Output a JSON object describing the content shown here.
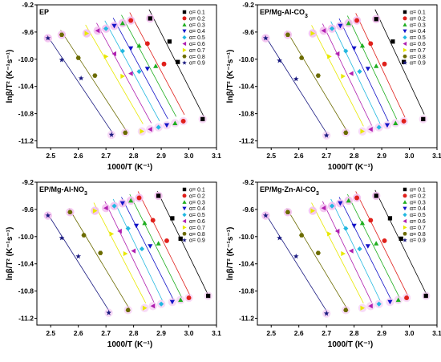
{
  "chart_data": [
    {
      "type": "scatter",
      "title": "EP",
      "title_parts": [
        "EP"
      ],
      "xlabel": "1000/T (K⁻¹)",
      "ylabel": "lnβ/T² (K⁻¹s⁻¹)",
      "xlim": [
        2.45,
        3.1
      ],
      "ylim": [
        -11.3,
        -9.2
      ],
      "xticks": [
        "2.5",
        "2.6",
        "2.7",
        "2.8",
        "2.9",
        "3.0",
        "3.1"
      ],
      "yticks": [
        "-9.2",
        "-9.6",
        "-10.0",
        "-10.4",
        "-10.8",
        "-11.2"
      ],
      "legend_position": "top-right",
      "series": [
        {
          "name": "α= 0.1",
          "x": [
            2.86,
            2.93,
            2.96,
            3.05
          ],
          "y": [
            -9.4,
            -9.74,
            -10.04,
            -10.88
          ]
        },
        {
          "name": "α= 0.2",
          "x": [
            2.79,
            2.85,
            2.91,
            2.98
          ],
          "y": [
            -9.43,
            -9.77,
            -10.07,
            -10.91
          ]
        },
        {
          "name": "α= 0.3",
          "x": [
            2.76,
            2.82,
            2.88,
            2.95
          ],
          "y": [
            -9.47,
            -9.8,
            -10.1,
            -10.94
          ]
        },
        {
          "name": "α= 0.4",
          "x": [
            2.73,
            2.79,
            2.85,
            2.92
          ],
          "y": [
            -9.51,
            -9.84,
            -10.14,
            -10.97
          ]
        },
        {
          "name": "α= 0.5",
          "x": [
            2.7,
            2.76,
            2.82,
            2.89
          ],
          "y": [
            -9.55,
            -9.88,
            -10.18,
            -11.0
          ]
        },
        {
          "name": "α= 0.6",
          "x": [
            2.67,
            2.73,
            2.79,
            2.86
          ],
          "y": [
            -9.58,
            -9.92,
            -10.21,
            -11.03
          ]
        },
        {
          "name": "α= 0.7",
          "x": [
            2.63,
            2.7,
            2.76,
            2.83
          ],
          "y": [
            -9.62,
            -9.96,
            -10.25,
            -11.06
          ]
        },
        {
          "name": "α= 0.8",
          "x": [
            2.54,
            2.6,
            2.66,
            2.77
          ],
          "y": [
            -9.64,
            -9.98,
            -10.24,
            -11.08
          ]
        },
        {
          "name": "α= 0.9",
          "x": [
            2.49,
            2.54,
            2.61,
            2.72
          ],
          "y": [
            -9.69,
            -10.01,
            -10.28,
            -11.11
          ]
        }
      ]
    },
    {
      "type": "scatter",
      "title": "EP/Mg-Al-CO3",
      "title_parts": [
        "EP/Mg-Al-CO",
        "3"
      ],
      "xlabel": "1000/T (K⁻¹)",
      "ylabel": "lnβ/T² (K⁻¹s⁻¹)",
      "xlim": [
        2.45,
        3.1
      ],
      "ylim": [
        -11.3,
        -9.2
      ],
      "xticks": [
        "2.5",
        "2.6",
        "2.7",
        "2.8",
        "2.9",
        "3.0",
        "3.1"
      ],
      "yticks": [
        "-9.2",
        "-9.6",
        "-10.0",
        "-10.4",
        "-10.8",
        "-11.2"
      ],
      "legend_position": "top-right",
      "series": [
        {
          "name": "α= 0.1",
          "x": [
            2.88,
            2.94,
            2.98,
            3.05
          ],
          "y": [
            -9.41,
            -9.74,
            -10.04,
            -10.88
          ]
        },
        {
          "name": "α= 0.2",
          "x": [
            2.81,
            2.86,
            2.91,
            2.98
          ],
          "y": [
            -9.43,
            -9.77,
            -10.07,
            -10.91
          ]
        },
        {
          "name": "α= 0.3",
          "x": [
            2.78,
            2.83,
            2.88,
            2.95
          ],
          "y": [
            -9.47,
            -9.8,
            -10.1,
            -10.94
          ]
        },
        {
          "name": "α= 0.4",
          "x": [
            2.75,
            2.8,
            2.85,
            2.92
          ],
          "y": [
            -9.51,
            -9.84,
            -10.14,
            -10.97
          ]
        },
        {
          "name": "α= 0.5",
          "x": [
            2.72,
            2.77,
            2.82,
            2.89
          ],
          "y": [
            -9.55,
            -9.88,
            -10.18,
            -11.0
          ]
        },
        {
          "name": "α= 0.6",
          "x": [
            2.69,
            2.74,
            2.79,
            2.86
          ],
          "y": [
            -9.58,
            -9.92,
            -10.21,
            -11.03
          ]
        },
        {
          "name": "α= 0.7",
          "x": [
            2.65,
            2.71,
            2.76,
            2.83
          ],
          "y": [
            -9.62,
            -9.96,
            -10.25,
            -11.06
          ]
        },
        {
          "name": "α= 0.8",
          "x": [
            2.56,
            2.61,
            2.67,
            2.77
          ],
          "y": [
            -9.64,
            -9.98,
            -10.24,
            -11.08
          ]
        },
        {
          "name": "α= 0.9",
          "x": [
            2.48,
            2.53,
            2.59,
            2.7
          ],
          "y": [
            -9.69,
            -10.02,
            -10.29,
            -11.12
          ]
        }
      ]
    },
    {
      "type": "scatter",
      "title": "EP/Mg-Al-NO3",
      "title_parts": [
        "EP/Mg-Al-NO",
        "3"
      ],
      "xlabel": "1000/T (K⁻¹)",
      "ylabel": "lnβ/T² (K⁻¹s⁻¹)",
      "xlim": [
        2.45,
        3.1
      ],
      "ylim": [
        -11.3,
        -9.2
      ],
      "xticks": [
        "2.5",
        "2.6",
        "2.7",
        "2.8",
        "2.9",
        "3.0",
        "3.1"
      ],
      "yticks": [
        "-9.2",
        "-9.6",
        "-10.0",
        "-10.4",
        "-10.8",
        "-11.2"
      ],
      "legend_position": "top-right",
      "series": [
        {
          "name": "α= 0.1",
          "x": [
            2.89,
            2.94,
            2.97,
            3.07
          ],
          "y": [
            -9.4,
            -9.73,
            -10.03,
            -10.87
          ]
        },
        {
          "name": "α= 0.2",
          "x": [
            2.82,
            2.87,
            2.92,
            3.0
          ],
          "y": [
            -9.43,
            -9.76,
            -10.06,
            -10.9
          ]
        },
        {
          "name": "α= 0.3",
          "x": [
            2.79,
            2.84,
            2.89,
            2.97
          ],
          "y": [
            -9.47,
            -9.8,
            -10.1,
            -10.93
          ]
        },
        {
          "name": "α= 0.4",
          "x": [
            2.76,
            2.81,
            2.86,
            2.94
          ],
          "y": [
            -9.51,
            -9.84,
            -10.14,
            -10.96
          ]
        },
        {
          "name": "α= 0.5",
          "x": [
            2.73,
            2.78,
            2.83,
            2.9
          ],
          "y": [
            -9.55,
            -9.88,
            -10.18,
            -10.99
          ]
        },
        {
          "name": "α= 0.6",
          "x": [
            2.7,
            2.75,
            2.8,
            2.87
          ],
          "y": [
            -9.58,
            -9.92,
            -10.21,
            -11.02
          ]
        },
        {
          "name": "α= 0.7",
          "x": [
            2.66,
            2.72,
            2.77,
            2.84
          ],
          "y": [
            -9.62,
            -9.96,
            -10.25,
            -11.05
          ]
        },
        {
          "name": "α= 0.8",
          "x": [
            2.57,
            2.62,
            2.68,
            2.78
          ],
          "y": [
            -9.64,
            -9.98,
            -10.24,
            -11.08
          ]
        },
        {
          "name": "α= 0.9",
          "x": [
            2.49,
            2.54,
            2.6,
            2.71
          ],
          "y": [
            -9.69,
            -10.02,
            -10.29,
            -11.12
          ]
        }
      ]
    },
    {
      "type": "scatter",
      "title": "EP/Mg-Zn-Al-CO3",
      "title_parts": [
        "EP/Mg-Zn-Al-CO",
        "3"
      ],
      "xlabel": "1000/T (K⁻¹)",
      "ylabel": "lnβ/T² (K⁻¹s⁻¹)",
      "xlim": [
        2.45,
        3.1
      ],
      "ylim": [
        -11.3,
        -9.2
      ],
      "xticks": [
        "2.5",
        "2.6",
        "2.7",
        "2.8",
        "2.9",
        "3.0",
        "3.1"
      ],
      "yticks": [
        "-9.2",
        "-9.6",
        "-10.0",
        "-10.4",
        "-10.8",
        "-11.2"
      ],
      "legend_position": "top-right",
      "series": [
        {
          "name": "α= 0.1",
          "x": [
            2.88,
            2.93,
            2.97,
            3.06
          ],
          "y": [
            -9.4,
            -9.73,
            -10.03,
            -10.87
          ]
        },
        {
          "name": "α= 0.2",
          "x": [
            2.81,
            2.86,
            2.91,
            2.99
          ],
          "y": [
            -9.43,
            -9.76,
            -10.06,
            -10.9
          ]
        },
        {
          "name": "α= 0.3",
          "x": [
            2.78,
            2.83,
            2.88,
            2.96
          ],
          "y": [
            -9.47,
            -9.8,
            -10.1,
            -10.93
          ]
        },
        {
          "name": "α= 0.4",
          "x": [
            2.75,
            2.8,
            2.85,
            2.93
          ],
          "y": [
            -9.51,
            -9.84,
            -10.14,
            -10.96
          ]
        },
        {
          "name": "α= 0.5",
          "x": [
            2.72,
            2.77,
            2.82,
            2.89
          ],
          "y": [
            -9.55,
            -9.88,
            -10.18,
            -10.99
          ]
        },
        {
          "name": "α= 0.6",
          "x": [
            2.69,
            2.74,
            2.79,
            2.86
          ],
          "y": [
            -9.58,
            -9.92,
            -10.21,
            -11.02
          ]
        },
        {
          "name": "α= 0.7",
          "x": [
            2.65,
            2.71,
            2.76,
            2.83
          ],
          "y": [
            -9.62,
            -9.96,
            -10.25,
            -11.05
          ]
        },
        {
          "name": "α= 0.8",
          "x": [
            2.56,
            2.61,
            2.67,
            2.77
          ],
          "y": [
            -9.64,
            -9.98,
            -10.24,
            -11.08
          ]
        },
        {
          "name": "α= 0.9",
          "x": [
            2.48,
            2.53,
            2.59,
            2.7
          ],
          "y": [
            -9.69,
            -10.02,
            -10.29,
            -11.13
          ]
        }
      ]
    }
  ],
  "series_styles": [
    {
      "color": "#000000",
      "marker": "square"
    },
    {
      "color": "#e0201b",
      "marker": "circle"
    },
    {
      "color": "#1fae1f",
      "marker": "triangle-up"
    },
    {
      "color": "#1414c8",
      "marker": "triangle-down"
    },
    {
      "color": "#22b8e0",
      "marker": "diamond"
    },
    {
      "color": "#b020b0",
      "marker": "triangle-left"
    },
    {
      "color": "#e8e800",
      "marker": "triangle-right"
    },
    {
      "color": "#6b6b00",
      "marker": "hexagon"
    },
    {
      "color": "#1a1a80",
      "marker": "star"
    }
  ],
  "highlight_color": "#f3bdf0"
}
